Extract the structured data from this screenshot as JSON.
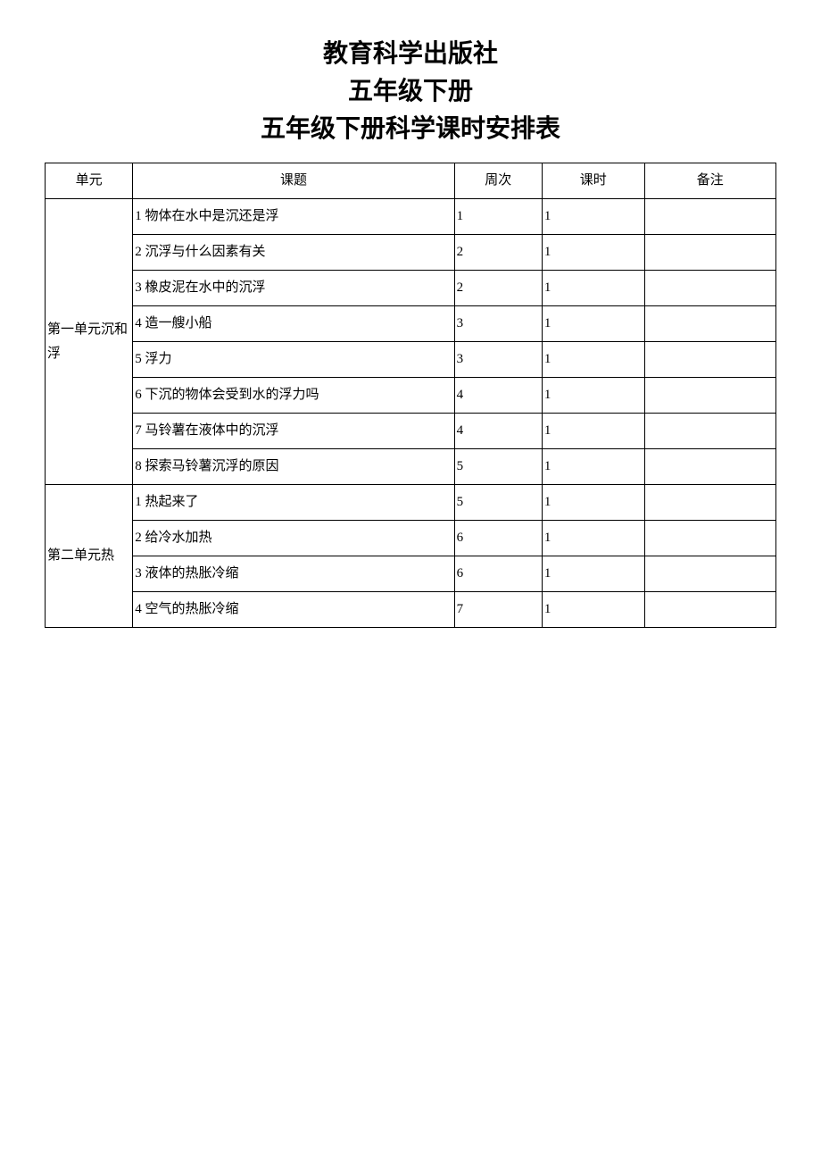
{
  "header": {
    "line1": "教育科学出版社",
    "line2": "五年级下册",
    "line3": "五年级下册科学课时安排表"
  },
  "table": {
    "columns": {
      "unit": "单元",
      "topic": "课题",
      "week": "周次",
      "period": "课时",
      "note": "备注"
    },
    "units": [
      {
        "name": "第一单元沉和浮",
        "rows": [
          {
            "topic": "1 物体在水中是沉还是浮",
            "week": "1",
            "period": "1",
            "note": ""
          },
          {
            "topic": "2 沉浮与什么因素有关",
            "week": "2",
            "period": "1",
            "note": ""
          },
          {
            "topic": "3 橡皮泥在水中的沉浮",
            "week": "2",
            "period": "1",
            "note": ""
          },
          {
            "topic": "4 造一艘小船",
            "week": "3",
            "period": "1",
            "note": ""
          },
          {
            "topic": "5 浮力",
            "week": "3",
            "period": "1",
            "note": ""
          },
          {
            "topic": "6 下沉的物体会受到水的浮力吗",
            "week": "4",
            "period": "1",
            "note": ""
          },
          {
            "topic": "7 马铃薯在液体中的沉浮",
            "week": "4",
            "period": "1",
            "note": ""
          },
          {
            "topic": "8 探索马铃薯沉浮的原因",
            "week": "5",
            "period": "1",
            "note": ""
          }
        ]
      },
      {
        "name": "第二单元热",
        "rows": [
          {
            "topic": "1 热起来了",
            "week": "5",
            "period": "1",
            "note": ""
          },
          {
            "topic": "2 给冷水加热",
            "week": "6",
            "period": "1",
            "note": ""
          },
          {
            "topic": "3 液体的热胀冷缩",
            "week": "6",
            "period": "1",
            "note": ""
          },
          {
            "topic": "4 空气的热胀冷缩",
            "week": "7",
            "period": "1",
            "note": ""
          }
        ]
      }
    ]
  },
  "style": {
    "title_fontsize": 28,
    "cell_fontsize": 15,
    "border_color": "#000000",
    "background_color": "#ffffff",
    "text_color": "#000000",
    "col_widths_pct": {
      "unit": 12,
      "topic": 44,
      "week": 12,
      "period": 14,
      "note": 18
    }
  }
}
